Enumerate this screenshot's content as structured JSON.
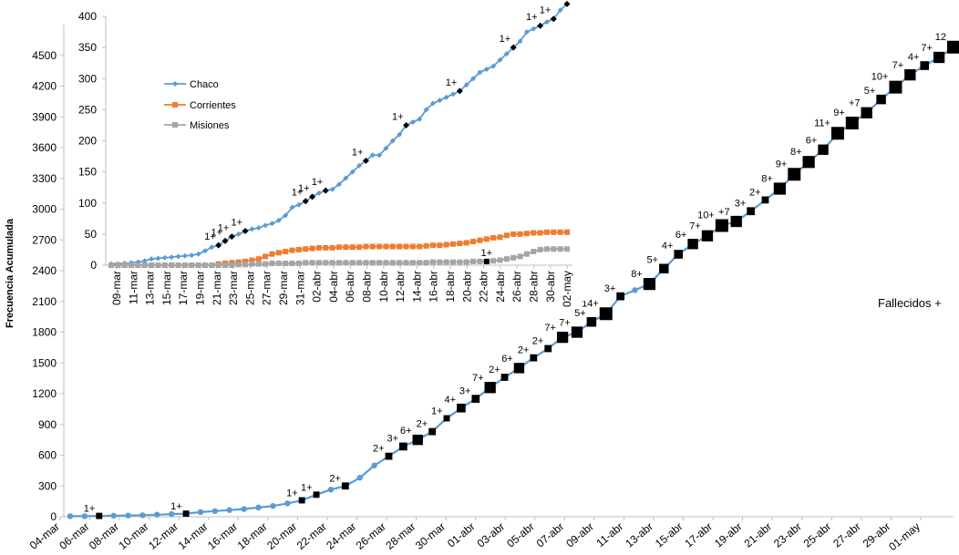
{
  "chart_data": [
    {
      "type": "line",
      "ylabel": "Frecuencia Acumulada",
      "ylim": [
        0,
        4800
      ],
      "yticks": [
        "0",
        "300",
        "600",
        "900",
        "1200",
        "1500",
        "1800",
        "2100",
        "2400",
        "2700",
        "3000",
        "3300",
        "3600",
        "3900",
        "4200",
        "4500"
      ],
      "xticks": [
        "04-mar",
        "06-mar",
        "08-mar",
        "10-mar",
        "12-mar",
        "14-mar",
        "16-mar",
        "18-mar",
        "20-mar",
        "22-mar",
        "24-mar",
        "26-mar",
        "28-mar",
        "30-mar",
        "01-abr",
        "03-abr",
        "05-abr",
        "07-abr",
        "09-abr",
        "11-abr",
        "13-abr",
        "15-abr",
        "17-abr",
        "19-abr",
        "21-abr",
        "23-abr",
        "25-abr",
        "27-abr",
        "29-abr",
        "01-may"
      ],
      "legend_note": "Fallecidos +",
      "series": [
        {
          "line_color": "#5b9bd5",
          "values": [
            5,
            5,
            8,
            10,
            12,
            15,
            20,
            25,
            30,
            45,
            55,
            65,
            75,
            90,
            105,
            130,
            160,
            215,
            265,
            300,
            380,
            500,
            590,
            685,
            750,
            830,
            960,
            1060,
            1150,
            1260,
            1360,
            1450,
            1550,
            1640,
            1750,
            1800,
            1900,
            1980,
            2150,
            2210,
            2270,
            2420,
            2560,
            2660,
            2740,
            2840,
            2880,
            2980,
            3090,
            3200,
            3340,
            3460,
            3580,
            3740,
            3840,
            3940,
            4070,
            4190,
            4310,
            4400,
            4480,
            4580
          ]
        }
      ],
      "deaths": [
        {
          "index": 2,
          "label": "1+"
        },
        {
          "index": 8,
          "label": "1+"
        },
        {
          "index": 16,
          "label": "1+"
        },
        {
          "index": 17,
          "label": "1+"
        },
        {
          "index": 19,
          "label": "2+"
        },
        {
          "index": 22,
          "label": "2+"
        },
        {
          "index": 23,
          "label": "3+"
        },
        {
          "index": 24,
          "label": "6+"
        },
        {
          "index": 25,
          "label": "2+"
        },
        {
          "index": 26,
          "label": "1+"
        },
        {
          "index": 27,
          "label": "4+"
        },
        {
          "index": 28,
          "label": "3+"
        },
        {
          "index": 29,
          "label": "7+"
        },
        {
          "index": 30,
          "label": "2+"
        },
        {
          "index": 31,
          "label": "6+"
        },
        {
          "index": 32,
          "label": "2+"
        },
        {
          "index": 33,
          "label": "2+"
        },
        {
          "index": 34,
          "label": "7+"
        },
        {
          "index": 35,
          "label": "7+"
        },
        {
          "index": 36,
          "label": "5+"
        },
        {
          "index": 37,
          "label": "14+"
        },
        {
          "index": 38,
          "label": "3+"
        },
        {
          "index": 40,
          "label": "8+"
        },
        {
          "index": 41,
          "label": "5+"
        },
        {
          "index": 42,
          "label": "4+"
        },
        {
          "index": 43,
          "label": "6+"
        },
        {
          "index": 44,
          "label": "7+"
        },
        {
          "index": 45,
          "label": "10+"
        },
        {
          "index": 46,
          "label": "+7"
        },
        {
          "index": 47,
          "label": "3+"
        },
        {
          "index": 48,
          "label": "2+"
        },
        {
          "index": 49,
          "label": "8+"
        },
        {
          "index": 50,
          "label": "9+"
        },
        {
          "index": 51,
          "label": "8+"
        },
        {
          "index": 52,
          "label": "6+"
        },
        {
          "index": 53,
          "label": "11+"
        },
        {
          "index": 54,
          "label": "9+"
        },
        {
          "index": 55,
          "label": "+7"
        },
        {
          "index": 56,
          "label": "5+"
        },
        {
          "index": 57,
          "label": "10+"
        },
        {
          "index": 58,
          "label": "7+"
        },
        {
          "index": 59,
          "label": "4+"
        },
        {
          "index": 60,
          "label": "7+"
        },
        {
          "index": 61,
          "label": "12"
        }
      ]
    },
    {
      "type": "line",
      "ylim": [
        0,
        400
      ],
      "yticks": [
        "0",
        "50",
        "100",
        "150",
        "200",
        "250",
        "300",
        "350",
        "400"
      ],
      "xticks": [
        "09-mar",
        "11-mar",
        "13-mar",
        "15-mar",
        "17-mar",
        "19-mar",
        "21-mar",
        "23-mar",
        "25-mar",
        "27-mar",
        "29-mar",
        "31-mar",
        "02-abr",
        "04-abr",
        "06-abr",
        "08-abr",
        "10-abr",
        "12-abr",
        "14-abr",
        "16-abr",
        "18-abr",
        "20-abr",
        "22-abr",
        "24-abr",
        "26-abr",
        "28-abr",
        "30-abr",
        "02-may"
      ],
      "legend_position": "top-left",
      "series": [
        {
          "name": "Chaco",
          "color": "#5b9bd5",
          "values": [
            2,
            2,
            3,
            4,
            5,
            7,
            10,
            11,
            12,
            13,
            14,
            15,
            16,
            18,
            23,
            29,
            32,
            39,
            46,
            50,
            55,
            58,
            60,
            64,
            67,
            72,
            80,
            93,
            97,
            103,
            110,
            116,
            120,
            122,
            130,
            140,
            150,
            160,
            168,
            177,
            177,
            188,
            200,
            210,
            225,
            230,
            235,
            250,
            260,
            265,
            270,
            275,
            280,
            290,
            300,
            310,
            315,
            320,
            330,
            340,
            350,
            360,
            375,
            380,
            385,
            391,
            396,
            410,
            420
          ]
        },
        {
          "name": "Corrientes",
          "color": "#ed7d31",
          "values": [
            0,
            0,
            0,
            0,
            0,
            0,
            0,
            0,
            0,
            0,
            0,
            0,
            0,
            0,
            0,
            0,
            2,
            3,
            4,
            5,
            6,
            8,
            10,
            14,
            18,
            20,
            22,
            24,
            25,
            26,
            27,
            28,
            28,
            28,
            29,
            29,
            29,
            29,
            30,
            30,
            30,
            30,
            30,
            30,
            30,
            30,
            30,
            31,
            32,
            32,
            33,
            34,
            35,
            36,
            38,
            40,
            42,
            44,
            45,
            48,
            50,
            50,
            51,
            52,
            52,
            53,
            53,
            53,
            53
          ]
        },
        {
          "name": "Misiones",
          "color": "#a5a5a5",
          "values": [
            0,
            0,
            0,
            0,
            0,
            0,
            0,
            0,
            0,
            0,
            0,
            0,
            0,
            0,
            0,
            0,
            0,
            0,
            0,
            1,
            1,
            2,
            2,
            2,
            3,
            3,
            3,
            3,
            3,
            4,
            4,
            4,
            4,
            4,
            4,
            4,
            4,
            4,
            4,
            4,
            4,
            4,
            4,
            4,
            4,
            4,
            4,
            4,
            5,
            5,
            5,
            5,
            5,
            5,
            6,
            6,
            6,
            7,
            8,
            10,
            12,
            14,
            18,
            22,
            25,
            26,
            26,
            26,
            26
          ]
        }
      ],
      "deaths_chaco": [
        {
          "index": 16,
          "label": "1+"
        },
        {
          "index": 17,
          "label": "1+"
        },
        {
          "index": 18,
          "label": "1+"
        },
        {
          "index": 20,
          "label": "1+"
        },
        {
          "index": 29,
          "label": "1+"
        },
        {
          "index": 30,
          "label": "1+"
        },
        {
          "index": 32,
          "label": "1+"
        },
        {
          "index": 38,
          "label": "1+"
        },
        {
          "index": 44,
          "label": "1+"
        },
        {
          "index": 52,
          "label": "1+"
        },
        {
          "index": 60,
          "label": "1+"
        },
        {
          "index": 64,
          "label": "1+"
        },
        {
          "index": 66,
          "label": "1+"
        },
        {
          "index": 68,
          "label": "3+"
        },
        {
          "index": 69,
          "label": "1+"
        }
      ],
      "deaths_misiones": [
        {
          "index": 56,
          "label": "1+"
        }
      ]
    }
  ]
}
